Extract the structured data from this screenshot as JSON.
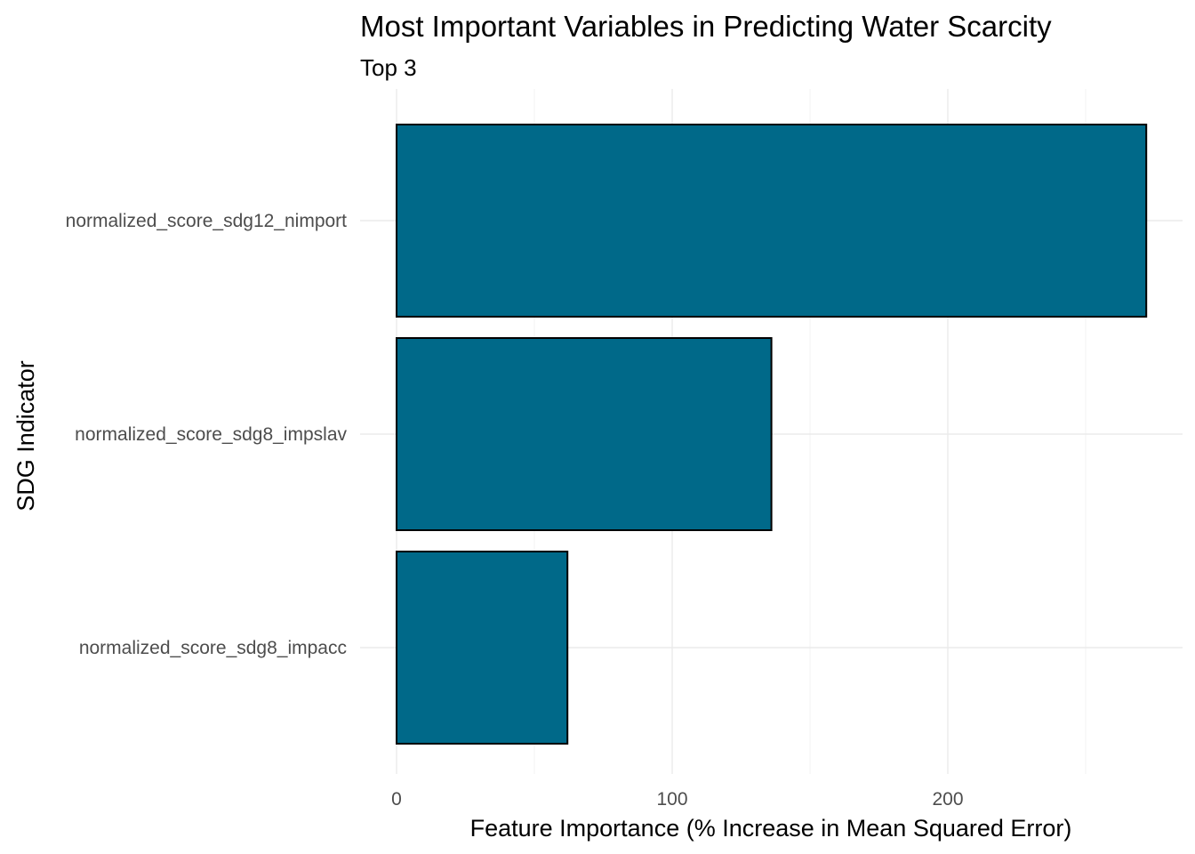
{
  "chart_data": {
    "type": "bar",
    "orientation": "horizontal",
    "title": "Most Important Variables in Predicting Water Scarcity",
    "subtitle": "Top 3",
    "xlabel": "Feature Importance (% Increase in Mean Squared Error)",
    "ylabel": "SDG Indicator",
    "categories": [
      "normalized_score_sdg12_nimport",
      "normalized_score_sdg8_impslav",
      "normalized_score_sdg8_impacc"
    ],
    "values": [
      272,
      136,
      62
    ],
    "xlim": [
      0,
      285
    ],
    "xticks": [
      0,
      100,
      200
    ],
    "xticks_minor": [
      50,
      150,
      250
    ],
    "grid": true,
    "legend": "none",
    "bar_color": "#006989",
    "bar_outline": "#000000"
  }
}
